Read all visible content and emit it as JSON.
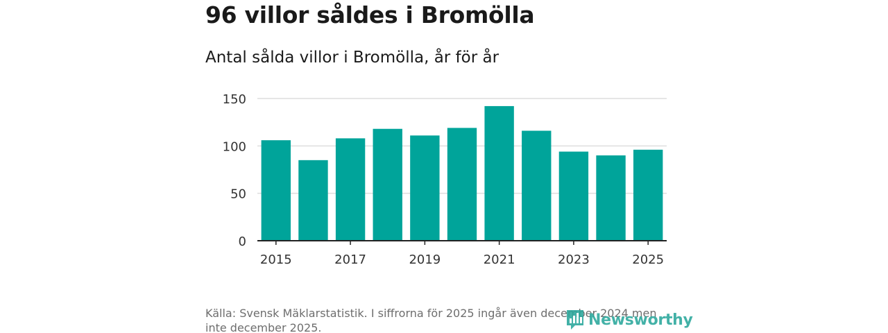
{
  "title": "96 villor såldes i Bromölla",
  "subtitle": "Antal sålda villor i Bromölla, år för år",
  "source": "Källa: Svensk Mäklarstatistik. I siffrorna för 2025 ingår även december 2024 men inte december 2025.",
  "logo": {
    "text": "Newsworthy",
    "icon": "bar-chart-logo-icon"
  },
  "colors": {
    "bar": "#00a49a",
    "grid": "#dddddd",
    "axis": "#222222",
    "brand": "#2aa79b"
  },
  "chart_data": {
    "type": "bar",
    "title": "Antal sålda villor i Bromölla, år för år",
    "xlabel": "",
    "ylabel": "",
    "categories": [
      "2015",
      "2016",
      "2017",
      "2018",
      "2019",
      "2020",
      "2021",
      "2022",
      "2023",
      "2024",
      "2025"
    ],
    "values": [
      106,
      85,
      108,
      118,
      111,
      119,
      142,
      116,
      94,
      90,
      96
    ],
    "x_tick_labels": [
      "2015",
      "2017",
      "2019",
      "2021",
      "2023",
      "2025"
    ],
    "y_ticks": [
      0,
      50,
      100,
      150
    ],
    "ylim": [
      0,
      150
    ],
    "grid": true
  }
}
